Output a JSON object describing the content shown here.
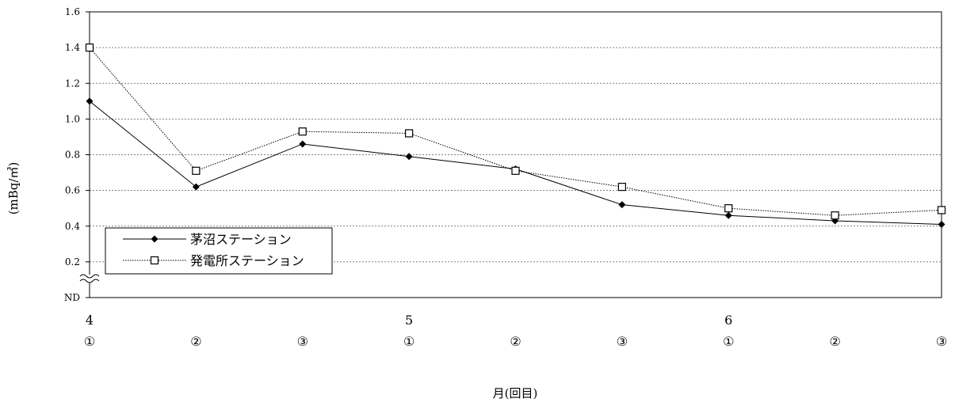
{
  "chart_data": {
    "type": "line",
    "title": "",
    "xlabel": "月(回目)",
    "ylabel": "(mBq/㎥)",
    "ylim": [
      0,
      1.6
    ],
    "y_ticks": [
      "ND",
      "0.2",
      "0.4",
      "0.6",
      "0.8",
      "1.0",
      "1.2",
      "1.4",
      "1.6"
    ],
    "grid": true,
    "legend_position": "bottom-left",
    "categories": [
      {
        "month": "4",
        "round": "①"
      },
      {
        "month": "",
        "round": "②"
      },
      {
        "month": "",
        "round": "③"
      },
      {
        "month": "5",
        "round": "①"
      },
      {
        "month": "",
        "round": "②"
      },
      {
        "month": "",
        "round": "③"
      },
      {
        "month": "6",
        "round": "①"
      },
      {
        "month": "",
        "round": "②"
      },
      {
        "month": "",
        "round": "③"
      }
    ],
    "series": [
      {
        "name": "茅沼ステーション",
        "marker": "filled-diamond",
        "line": "solid",
        "values": [
          1.1,
          0.62,
          0.86,
          0.79,
          0.72,
          0.52,
          0.46,
          0.43,
          0.41
        ]
      },
      {
        "name": "発電所ステーション",
        "marker": "open-square",
        "line": "dotted",
        "values": [
          1.4,
          0.71,
          0.93,
          0.92,
          0.71,
          0.62,
          0.5,
          0.46,
          0.49
        ]
      }
    ]
  }
}
